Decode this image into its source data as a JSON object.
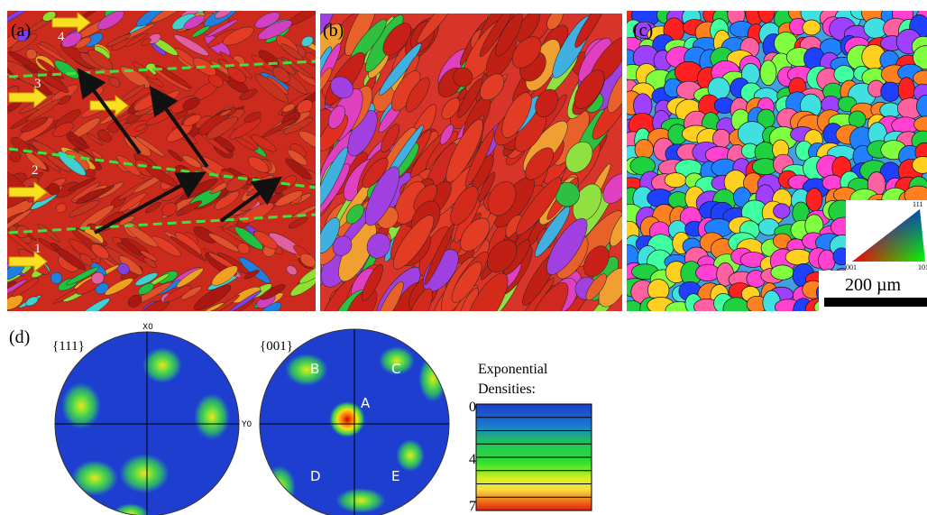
{
  "panel_a": {
    "label": "(a)",
    "layer_labels": [
      "1",
      "2",
      "3",
      "4"
    ]
  },
  "panel_b": {
    "label": "(b)"
  },
  "panel_c": {
    "label": "(c)",
    "triangle_labels": [
      "111",
      "001",
      "101"
    ],
    "scale_bar": "200 µm"
  },
  "panel_d": {
    "label": "(d)",
    "pole_figures": [
      {
        "title": "{111}",
        "x_axis": "X0",
        "y_axis": "Y0"
      },
      {
        "title": "{001}",
        "points": [
          "A",
          "B",
          "C",
          "D",
          "E"
        ]
      }
    ],
    "legend": {
      "title": [
        "Exponential",
        "Densities:"
      ],
      "ticks": [
        0,
        4,
        7
      ]
    }
  }
}
